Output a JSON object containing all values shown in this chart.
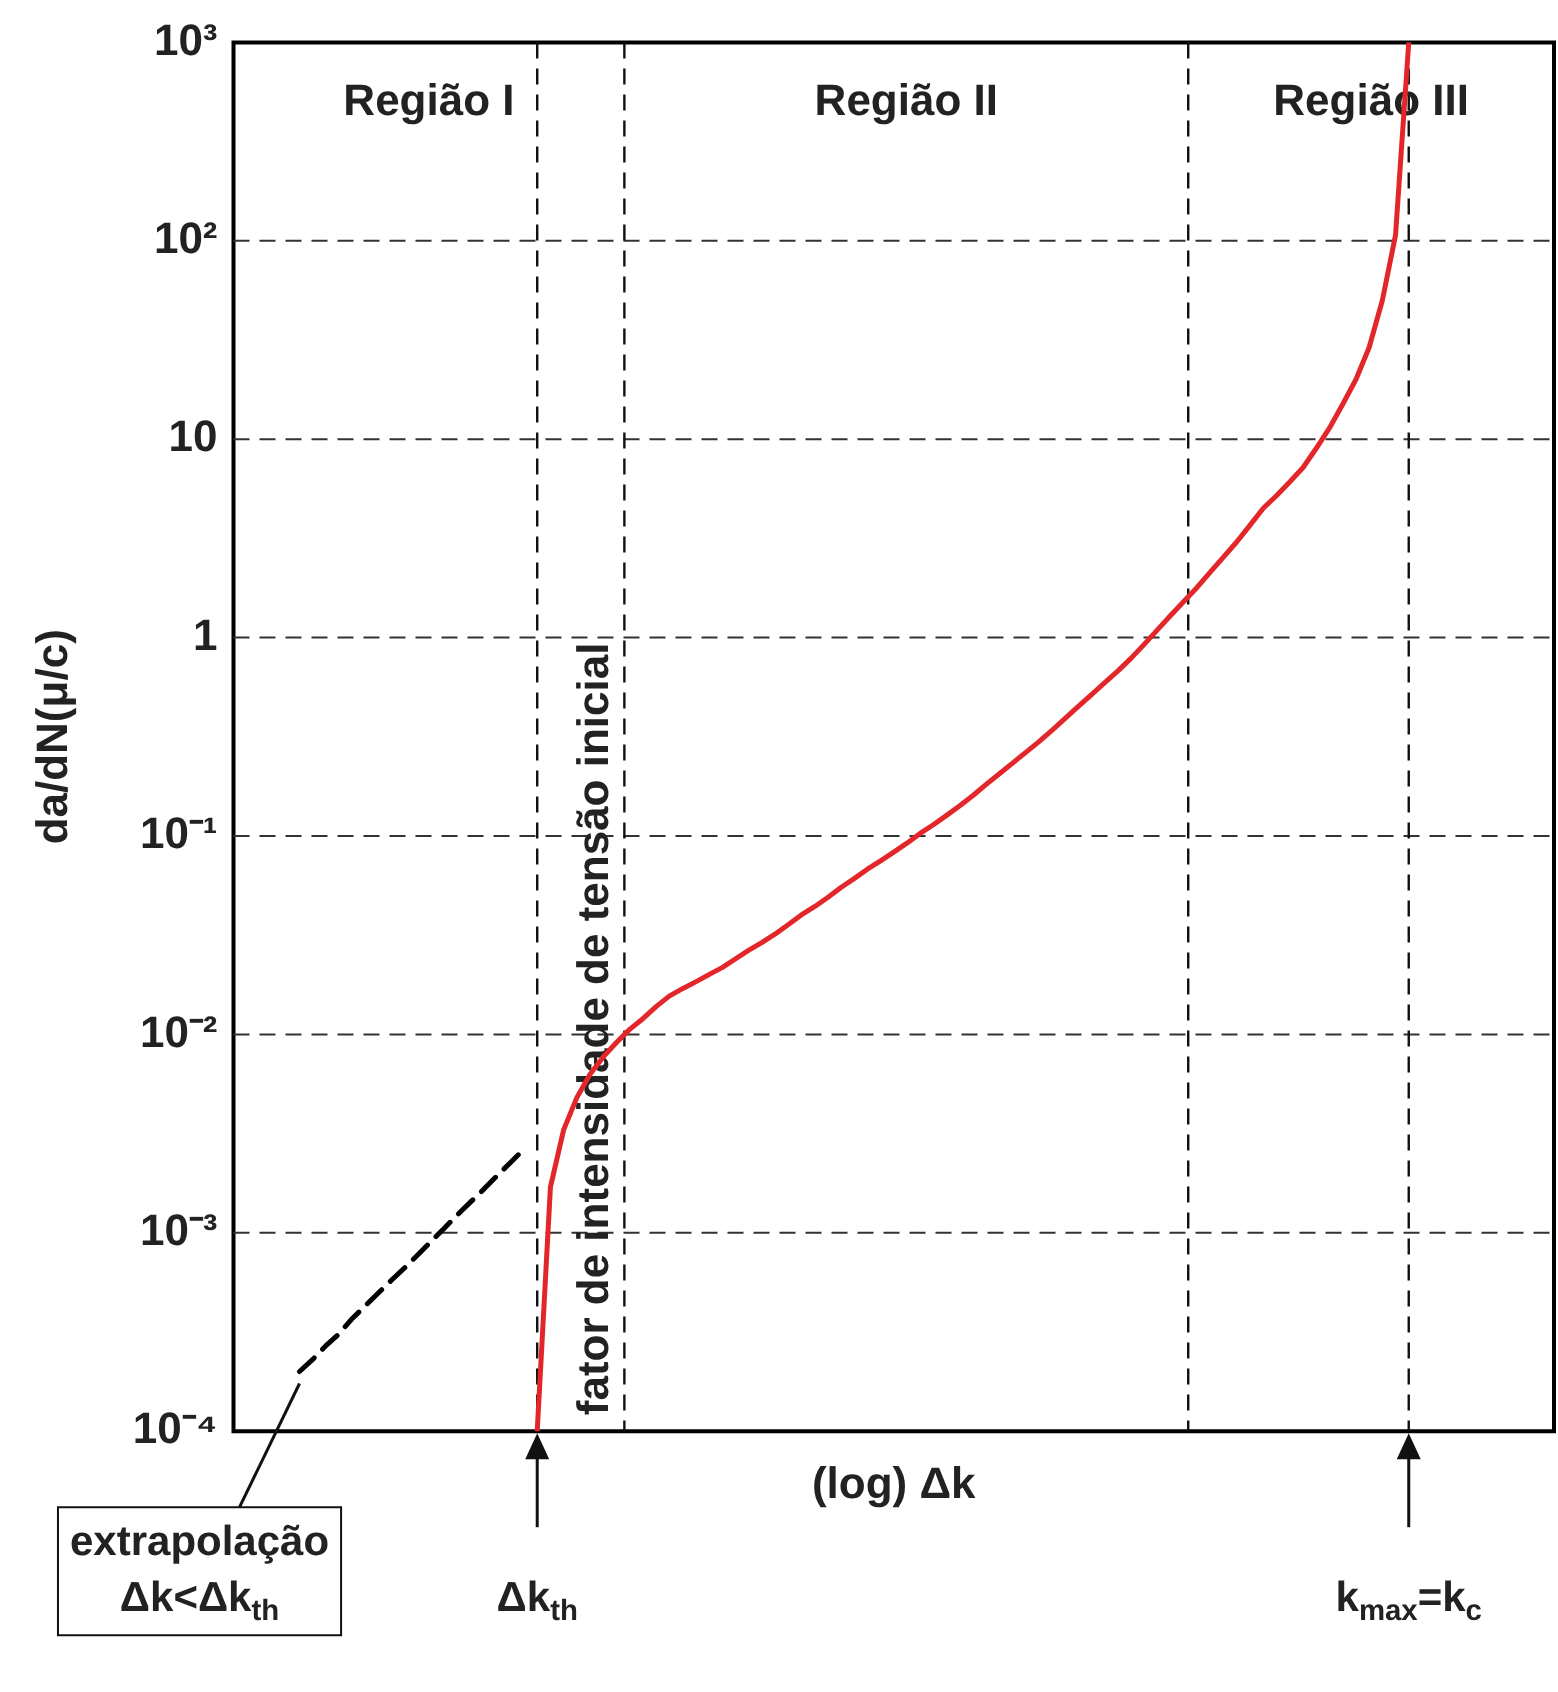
{
  "chart_data": {
    "type": "line",
    "xlabel": "(log) Δk",
    "ylabel": "da/dN(μ/c)",
    "log": "y",
    "grid": "y",
    "marker": "none",
    "tick_labels": "y",
    "categories": [
      null,
      null,
      null,
      null,
      null,
      null,
      null,
      null,
      null,
      null,
      null,
      null,
      null,
      null,
      null,
      null,
      null,
      null,
      null,
      null,
      null,
      null,
      null,
      null,
      null,
      null,
      null,
      null,
      null,
      null,
      null,
      null,
      null,
      null,
      null,
      null,
      null,
      null,
      null,
      null,
      null,
      null,
      null,
      null,
      null,
      null,
      null,
      null,
      null,
      null,
      null,
      null,
      null,
      null,
      null,
      null,
      null,
      null,
      null,
      null,
      null,
      null,
      null,
      null,
      null,
      null,
      null,
      null,
      null,
      null,
      null,
      null,
      null,
      null,
      null,
      null,
      null,
      null,
      null,
      null,
      null,
      null,
      null,
      null,
      null,
      null,
      null,
      null,
      null,
      null,
      null,
      null,
      null,
      null,
      null,
      null,
      null,
      null,
      null,
      null,
      null
    ],
    "ylim": [
      0.0001,
      1000
    ],
    "yticks": [
      {
        "value": 0.0001,
        "label": "10⁻⁴"
      },
      {
        "value": 0.001,
        "label": "10⁻³"
      },
      {
        "value": 0.01,
        "label": "10⁻²"
      },
      {
        "value": 0.1,
        "label": "10⁻¹"
      },
      1,
      10,
      {
        "value": 100,
        "label": "10²"
      },
      {
        "value": 1000,
        "label": "10³"
      }
    ],
    "series": [
      {
        "color": "#e3262a",
        "values": [
          null,
          null,
          null,
          null,
          null,
          null,
          null,
          null,
          null,
          null,
          null,
          null,
          null,
          null,
          null,
          null,
          null,
          null,
          null,
          null,
          null,
          null,
          null,
          0.0001,
          0.0017,
          0.0033,
          0.0048,
          0.0063,
          0.0077,
          0.0091,
          0.0106,
          0.012,
          0.0138,
          0.0156,
          0.017,
          0.0184,
          0.02,
          0.0217,
          0.024,
          0.0265,
          0.029,
          0.032,
          0.0357,
          0.04,
          0.044,
          0.049,
          0.055,
          0.061,
          0.068,
          0.075,
          0.083,
          0.092,
          0.103,
          0.114,
          0.127,
          0.142,
          0.16,
          0.182,
          0.206,
          0.233,
          0.264,
          0.299,
          0.342,
          0.393,
          0.451,
          0.518,
          0.594,
          0.682,
          0.79,
          0.93,
          1.1,
          1.3,
          1.53,
          1.8,
          2.15,
          2.56,
          3.05,
          3.7,
          4.5,
          5.2,
          6.1,
          7.2,
          9,
          11.4,
          15,
          20,
          29,
          50,
          107,
          1000,
          null,
          null,
          null,
          null,
          null,
          null,
          null,
          null,
          null,
          null,
          null
        ]
      },
      {
        "line_style": "dashed",
        "color": "#000000",
        "values": [
          null,
          null,
          null,
          null,
          null,
          0.0002,
          0.00023,
          0.00027,
          0.00031,
          0.00037,
          0.00043,
          0.0005,
          0.00058,
          0.00067,
          0.00078,
          0.00091,
          0.00106,
          0.00124,
          0.00144,
          0.00167,
          0.00195,
          0.00227,
          0.00264,
          null,
          null,
          null,
          null,
          null,
          null,
          null,
          null,
          null,
          null,
          null,
          null,
          null,
          null,
          null,
          null,
          null,
          null,
          null,
          null,
          null,
          null,
          null,
          null,
          null,
          null,
          null,
          null,
          null,
          null,
          null,
          null,
          null,
          null,
          null,
          null,
          null,
          null,
          null,
          null,
          null,
          null,
          null,
          null,
          null,
          null,
          null,
          null,
          null,
          null,
          null,
          null,
          null,
          null,
          null,
          null,
          null,
          null,
          null,
          null,
          null,
          null,
          null,
          null,
          null,
          null,
          null,
          null,
          null,
          null,
          null,
          null,
          null,
          null,
          null,
          null,
          null,
          null
        ]
      }
    ],
    "annotations": [
      "Região I",
      "Região II",
      "Região III",
      "fator de intensidade de tensão inicial",
      "extrapolação\nΔk<Δk$_{th}$",
      "Δk$_{th}$",
      "k$_{max}$=k$_{c}$"
    ]
  }
}
